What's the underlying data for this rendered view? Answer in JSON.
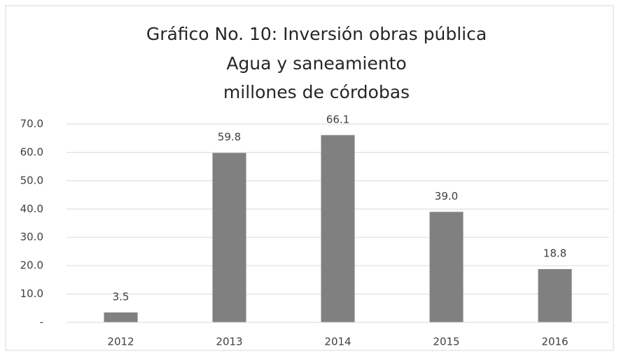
{
  "chart_data": {
    "type": "bar",
    "title": [
      "Gráfico No. 10: Inversión obras pública",
      "Agua y saneamiento",
      "millones de córdobas"
    ],
    "categories": [
      "2012",
      "2013",
      "2014",
      "2015",
      "2016"
    ],
    "values": [
      3.5,
      59.8,
      66.1,
      39.0,
      18.8
    ],
    "value_labels": [
      "3.5",
      "59.8",
      "66.1",
      "39.0",
      "18.8"
    ],
    "color": "#808080",
    "ylim": [
      0,
      70
    ],
    "yticks": [
      {
        "value": 0,
        "label": "-"
      },
      {
        "value": 10,
        "label": "10.0"
      },
      {
        "value": 20,
        "label": "20.0"
      },
      {
        "value": 30,
        "label": "30.0"
      },
      {
        "value": 40,
        "label": "40.0"
      },
      {
        "value": 50,
        "label": "50.0"
      },
      {
        "value": 60,
        "label": "60.0"
      },
      {
        "value": 70,
        "label": "70.0"
      }
    ],
    "grid": true
  }
}
